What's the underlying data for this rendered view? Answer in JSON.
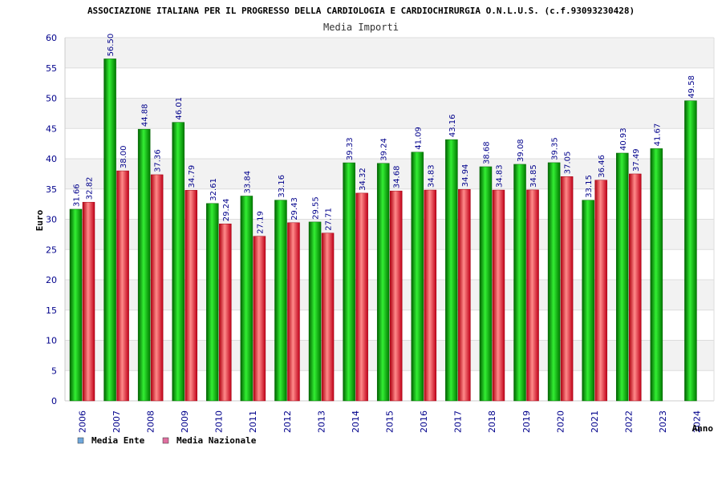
{
  "chart_data": {
    "type": "bar",
    "title": "ASSOCIAZIONE ITALIANA PER IL PROGRESSO DELLA CARDIOLOGIA E CARDIOCHIRURGIA O.N.L.U.S. (c.f.93093230428)",
    "subtitle": "Media Importi",
    "xlabel": "Anno",
    "ylabel": "Euro",
    "ylim": [
      0,
      60
    ],
    "yticks": [
      "0",
      "5",
      "10",
      "15",
      "20",
      "25",
      "30",
      "35",
      "40",
      "45",
      "50",
      "55",
      "60"
    ],
    "categories": [
      "2006",
      "2007",
      "2008",
      "2009",
      "2010",
      "2011",
      "2012",
      "2013",
      "2014",
      "2015",
      "2016",
      "2017",
      "2018",
      "2019",
      "2020",
      "2021",
      "2022",
      "2023",
      "2024"
    ],
    "series": [
      {
        "name": "Media Ente",
        "values": [
          31.66,
          56.5,
          44.88,
          46.01,
          32.61,
          33.84,
          33.16,
          29.55,
          39.33,
          39.24,
          41.09,
          43.16,
          38.68,
          39.08,
          39.35,
          33.15,
          40.93,
          41.67,
          49.58
        ],
        "labels": [
          "31.66",
          "56.50",
          "44.88",
          "46.01",
          "32.61",
          "33.84",
          "33.16",
          "29.55",
          "39.33",
          "39.24",
          "41.09",
          "43.16",
          "38.68",
          "39.08",
          "39.35",
          "33.15",
          "40.93",
          "41.67",
          "49.58"
        ],
        "color": "#00a800",
        "legend_color": "#6fa8dc"
      },
      {
        "name": "Media Nazionale",
        "values": [
          32.82,
          38.0,
          37.36,
          34.79,
          29.24,
          27.19,
          29.43,
          27.71,
          34.32,
          34.68,
          34.83,
          34.94,
          34.83,
          34.85,
          37.05,
          36.46,
          37.49,
          null,
          null
        ],
        "labels": [
          "32.82",
          "38.00",
          "37.36",
          "34.79",
          "29.24",
          "27.19",
          "29.43",
          "27.71",
          "34.32",
          "34.68",
          "34.83",
          "34.94",
          "34.83",
          "34.85",
          "37.05",
          "36.46",
          "37.49",
          null,
          null
        ],
        "color": "#e01020",
        "legend_color": "#e06fa0"
      }
    ],
    "legend_position": "bottom-left",
    "grid": true
  }
}
